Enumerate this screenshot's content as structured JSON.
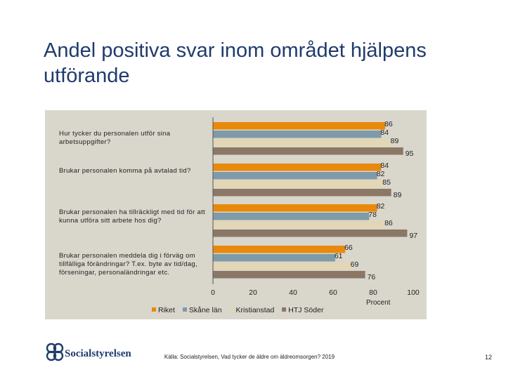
{
  "title": "Andel positiva svar inom området hjälpens utförande",
  "chart_data": {
    "type": "bar",
    "orientation": "horizontal",
    "categories": [
      "Hur tycker du personalen utför sina arbetsuppgifter?",
      "Brukar personalen komma på avtalad tid?",
      "Brukar personalen ha tillräckligt med tid för att kunna utföra sitt arbete hos dig?",
      "Brukar personalen meddela dig i förväg om tillfälliga förändringar? T.ex. byte av tid/dag, förseningar, personaländringar etc."
    ],
    "series": [
      {
        "name": "Riket",
        "color": "#e8890c",
        "values": [
          86,
          84,
          82,
          66
        ]
      },
      {
        "name": "Skåne län",
        "color": "#7f9aa8",
        "values": [
          84,
          82,
          78,
          61
        ]
      },
      {
        "name": "Kristianstad",
        "color": "#e2d6b4",
        "values": [
          89,
          85,
          86,
          69
        ]
      },
      {
        "name": "HTJ Söder",
        "color": "#8b7766",
        "values": [
          95,
          89,
          97,
          76
        ]
      }
    ],
    "xlim": [
      0,
      100
    ],
    "xticks": [
      0,
      20,
      40,
      60,
      80,
      100
    ],
    "xlabel": "Procent",
    "legend_position": "bottom",
    "grid": false
  },
  "footer": {
    "logo_text": "Socialstyrelsen",
    "source": "Källa: Socialstyrelsen, Vad tycker de äldre om äldreomsorgen? 2019",
    "page": "12"
  }
}
